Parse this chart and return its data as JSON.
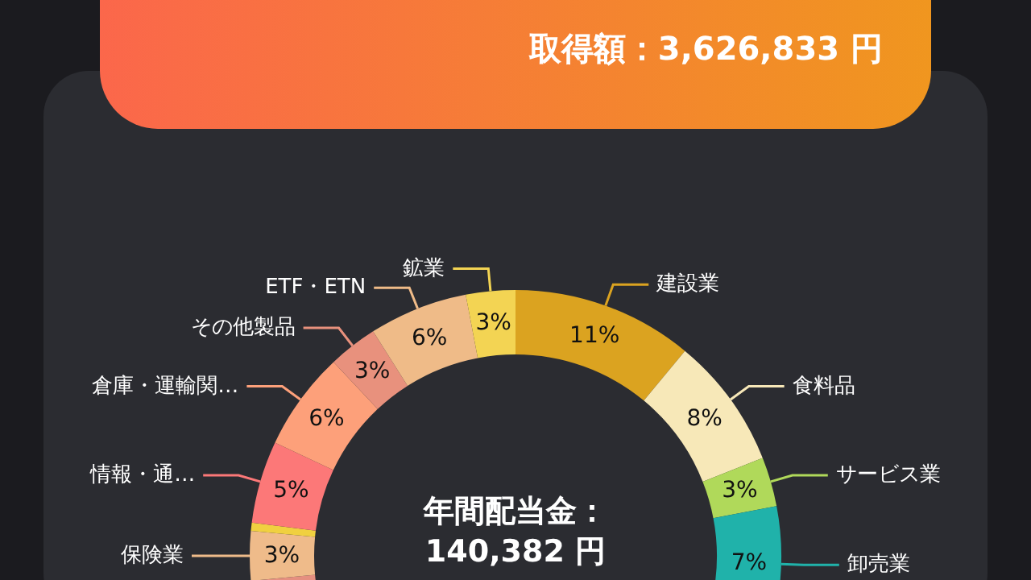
{
  "chart_data": {
    "type": "donut",
    "categories": [
      "建設業",
      "食料品",
      "サービス業",
      "卸売業",
      null,
      "保険業",
      null,
      "情報・通…",
      "倉庫・運輸関…",
      "その他製品",
      "ETF・ETN",
      "鉱業"
    ],
    "values": [
      11,
      8,
      3,
      7,
      44.5,
      3,
      0.5,
      5,
      6,
      3,
      6,
      3
    ],
    "value_labels": [
      "11%",
      "8%",
      "3%",
      "7%",
      null,
      "3%",
      null,
      "5%",
      "6%",
      "3%",
      "6%",
      "3%"
    ],
    "colors": [
      "#dba320",
      "#f7e8b8",
      "#b0d95a",
      "#20b2aa",
      "#e58f80",
      "#efbb8a",
      "#f0d040",
      "#fc7878",
      "#fda07a",
      "#e8917d",
      "#efbb88",
      "#f3d453"
    ],
    "annotations": [
      "取得額：3,626,833 円",
      "年間配当金：140,382 円"
    ]
  }
}
